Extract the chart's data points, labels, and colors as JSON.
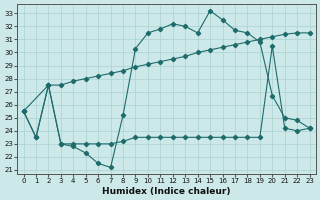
{
  "xlabel": "Humidex (Indice chaleur)",
  "bg_color": "#cde8e8",
  "grid_color": "#b0d4d4",
  "line_color": "#1e6b6b",
  "xlim": [
    -0.5,
    23.5
  ],
  "ylim": [
    20.7,
    33.7
  ],
  "yticks": [
    21,
    22,
    23,
    24,
    25,
    26,
    27,
    28,
    29,
    30,
    31,
    32,
    33
  ],
  "xticks": [
    0,
    1,
    2,
    3,
    4,
    5,
    6,
    7,
    8,
    9,
    10,
    11,
    12,
    13,
    14,
    15,
    16,
    17,
    18,
    19,
    20,
    21,
    22,
    23
  ],
  "line1_x": [
    0,
    1,
    2,
    3,
    4,
    5,
    6,
    7,
    8,
    9,
    10,
    11,
    12,
    13,
    14,
    15,
    16,
    17,
    18,
    19,
    20,
    21,
    22,
    23
  ],
  "line1_y": [
    25.5,
    23.5,
    27.5,
    23.0,
    22.8,
    22.3,
    21.5,
    21.2,
    25.2,
    30.3,
    31.5,
    31.8,
    32.2,
    32.0,
    31.5,
    33.2,
    32.5,
    31.7,
    31.5,
    30.8,
    26.7,
    25.0,
    24.8,
    24.2
  ],
  "line2_x": [
    0,
    2,
    3,
    4,
    5,
    6,
    7,
    8,
    9,
    10,
    11,
    12,
    13,
    14,
    15,
    16,
    17,
    18,
    19,
    20,
    21,
    22,
    23
  ],
  "line2_y": [
    25.5,
    27.5,
    27.5,
    27.8,
    28.0,
    28.2,
    28.4,
    28.6,
    28.9,
    29.1,
    29.3,
    29.5,
    29.7,
    30.0,
    30.2,
    30.4,
    30.6,
    30.8,
    31.0,
    31.2,
    31.4,
    31.5,
    31.5
  ],
  "line3_x": [
    0,
    1,
    2,
    3,
    4,
    5,
    6,
    7,
    8,
    9,
    10,
    11,
    12,
    13,
    14,
    15,
    16,
    17,
    18,
    19,
    20,
    21,
    22,
    23
  ],
  "line3_y": [
    25.5,
    23.5,
    27.5,
    23.0,
    23.0,
    23.0,
    23.0,
    23.0,
    23.2,
    23.5,
    23.5,
    23.5,
    23.5,
    23.5,
    23.5,
    23.5,
    23.5,
    23.5,
    23.5,
    23.5,
    30.5,
    24.2,
    24.0,
    24.2
  ]
}
